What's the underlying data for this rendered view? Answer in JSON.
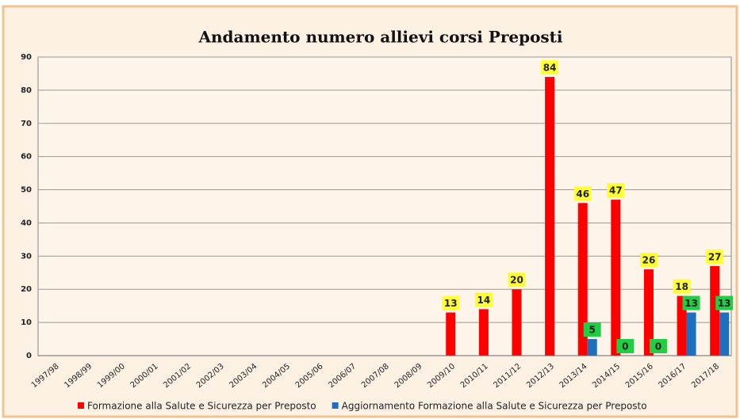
{
  "chart_data": {
    "type": "bar",
    "title": "Andamento numero allievi corsi Preposti",
    "categories": [
      "1997/98",
      "1998/99",
      "1999/00",
      "2000/01",
      "2001/02",
      "2002/03",
      "2003/04",
      "2004/05",
      "2005/06",
      "2006/07",
      "2007/08",
      "2008/09",
      "2009/10",
      "2010/11",
      "2011/12",
      "2012/13",
      "2013/14",
      "2014/15",
      "2015/16",
      "2016/17",
      "2017/18"
    ],
    "series": [
      {
        "name": "Formazione alla Salute e Sicurezza per Preposto",
        "color": "#ff0000",
        "values": [
          null,
          null,
          null,
          null,
          null,
          null,
          null,
          null,
          null,
          null,
          null,
          null,
          13,
          14,
          20,
          84,
          46,
          47,
          26,
          18,
          27
        ]
      },
      {
        "name": "Aggiornamento Formazione alla Salute e Sicurezza per Preposto",
        "color": "#1f6fbf",
        "values": [
          null,
          null,
          null,
          null,
          null,
          null,
          null,
          null,
          null,
          null,
          null,
          null,
          null,
          null,
          null,
          null,
          5,
          0,
          0,
          13,
          13
        ]
      }
    ],
    "ylim": [
      0,
      90
    ],
    "yticks": [
      0,
      10,
      20,
      30,
      40,
      50,
      60,
      70,
      80,
      90
    ],
    "grid": true
  }
}
